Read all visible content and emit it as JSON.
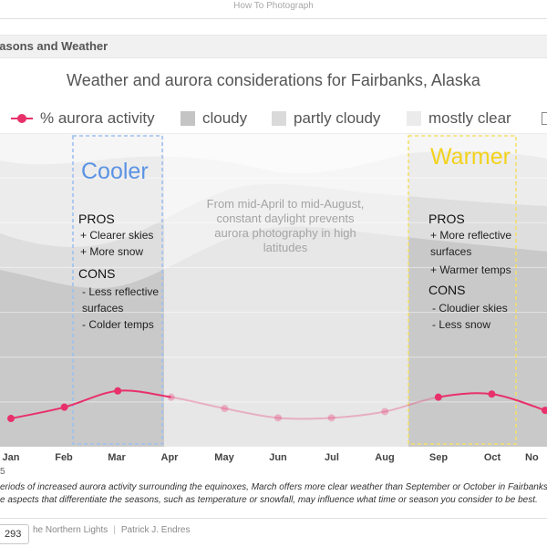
{
  "app": {
    "title": "How To Photograph"
  },
  "section": {
    "title": "easons and Weather"
  },
  "chart_data": {
    "type": "line",
    "title": "Weather and aurora considerations for Fairbanks, Alaska",
    "categories": [
      "Jan",
      "Feb",
      "Mar",
      "Apr",
      "May",
      "Jun",
      "Jul",
      "Aug",
      "Sep",
      "Oct",
      "No"
    ],
    "series": [
      {
        "name": "% aurora activity",
        "values": [
          4.5,
          6.3,
          8.9,
          7.9,
          6.1,
          4.6,
          4.6,
          5.6,
          7.9,
          8.4,
          5.8
        ],
        "color": "#e8306b"
      }
    ],
    "daylight_months": [
      "Apr",
      "May",
      "Jun",
      "Jul",
      "Aug"
    ],
    "ylim": [
      0,
      50
    ],
    "legend": [
      {
        "label": "% aurora activity",
        "kind": "line",
        "color": "#e8306b"
      },
      {
        "label": "cloudy",
        "kind": "box",
        "color": "#c4c4c4"
      },
      {
        "label": "partly cloudy",
        "kind": "box",
        "color": "#dadada"
      },
      {
        "label": "mostly clear",
        "kind": "box",
        "color": "#ebebeb"
      }
    ],
    "legend_placement": "top"
  },
  "seasons": {
    "cooler": {
      "title": "Cooler",
      "color": "#5b93e4",
      "pros_label": "PROS",
      "pros": [
        "+ Clearer skies",
        "+ More snow"
      ],
      "cons_label": "CONS",
      "cons": [
        "- Less reflective",
        "  surfaces",
        "- Colder temps"
      ]
    },
    "warmer": {
      "title": "Warmer",
      "color": "#f2d21c",
      "pros_label": "PROS",
      "pros": [
        "+ More reflective",
        "  surfaces",
        "+ Warmer temps"
      ],
      "cons_label": "CONS",
      "cons": [
        "- Cloudier skies",
        "- Less snow"
      ]
    }
  },
  "daylight_note": "From mid-April to mid-August, constant daylight prevents aurora photography in high latitudes",
  "caption": {
    "footnote_mark": "5",
    "line1": "eriods of increased aurora activity surrounding the equinoxes, March offers more clear weather than September or October in Fairbanks",
    "line2": "e aspects that differentiate the seasons, such as temperature or snowfall, may influence what time or season you consider to be best."
  },
  "footer": {
    "page_number": "293",
    "book": "he Northern Lights",
    "author": "Patrick J. Endres"
  }
}
